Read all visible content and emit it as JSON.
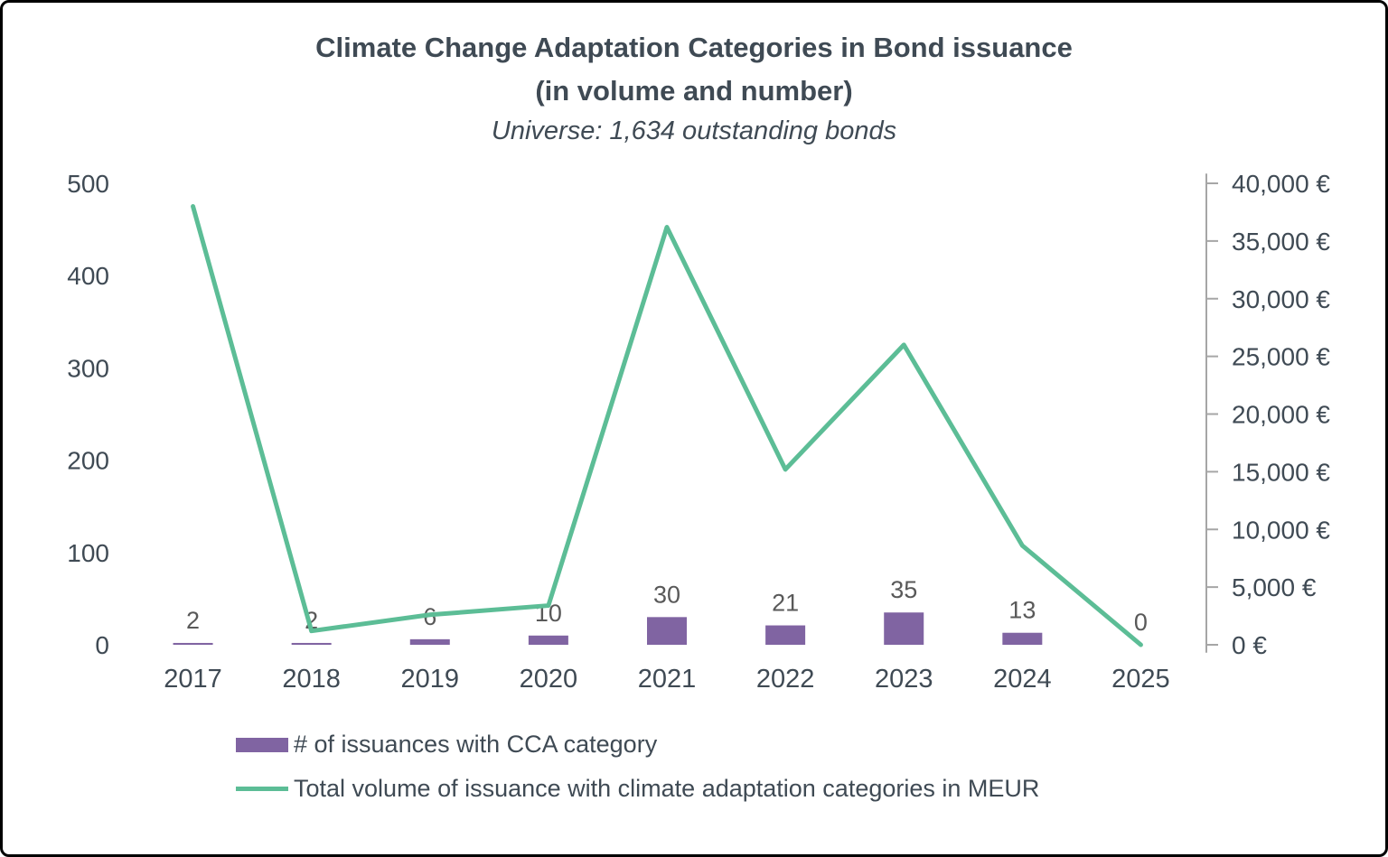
{
  "chart_data": {
    "type": "combo",
    "title_line1": "Climate Change Adaptation Categories in Bond issuance",
    "title_line2": "(in volume and number)",
    "subtitle": "Universe: 1,634 outstanding bonds",
    "categories": [
      "2017",
      "2018",
      "2019",
      "2020",
      "2021",
      "2022",
      "2023",
      "2024",
      "2025"
    ],
    "series": [
      {
        "name": "# of issuances with CCA category",
        "type": "bar",
        "axis": "left",
        "color": "#8064A2",
        "values": [
          2,
          2,
          6,
          10,
          30,
          21,
          35,
          13,
          0
        ]
      },
      {
        "name": "Total volume of issuance with climate adaptation categories in MEUR",
        "type": "line",
        "axis": "right",
        "color": "#5CBD96",
        "values": [
          38000,
          1200,
          2600,
          3400,
          36200,
          15200,
          26000,
          8600,
          0
        ]
      }
    ],
    "left_axis": {
      "min": 0,
      "max": 500,
      "ticks": [
        0,
        100,
        200,
        300,
        400,
        500
      ]
    },
    "right_axis": {
      "min": 0,
      "max": 40000,
      "ticks": [
        0,
        5000,
        10000,
        15000,
        20000,
        25000,
        30000,
        35000,
        40000
      ],
      "tick_labels": [
        "0 €",
        "5,000 €",
        "10,000 €",
        "15,000 €",
        "20,000 €",
        "25,000 €",
        "30,000 €",
        "35,000 €",
        "40,000 €"
      ]
    },
    "grid": false,
    "legend_position": "bottom-left"
  },
  "colors": {
    "text": "#3F4A54",
    "data_label": "#595959",
    "axis_line": "#A6A6A6"
  }
}
